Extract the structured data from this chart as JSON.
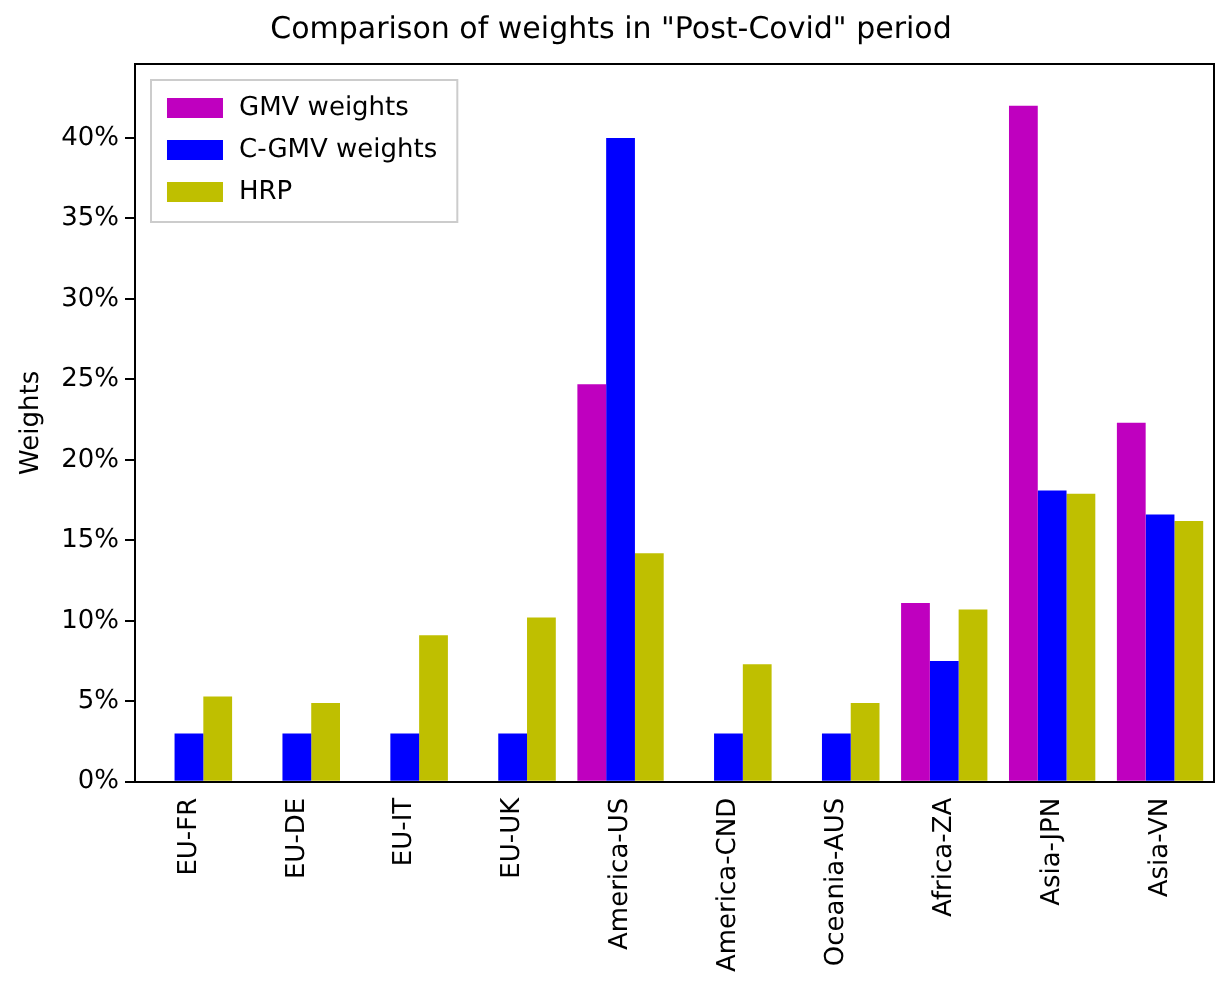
{
  "chart_data": {
    "type": "bar",
    "title": "Comparison of weights in \"Post-Covid\" period",
    "ylabel": "Weights",
    "categories": [
      "EU-FR",
      "EU-DE",
      "EU-IT",
      "EU-UK",
      "America-US",
      "America-CND",
      "Oceania-AUS",
      "Africa-ZA",
      "Asia-JPN",
      "Asia-VN"
    ],
    "series": [
      {
        "name": "GMV weights",
        "color": "#bf00bf",
        "values": [
          0,
          0,
          0,
          0,
          24.7,
          0,
          0,
          11.1,
          42,
          22.3
        ]
      },
      {
        "name": "C-GMV weights",
        "color": "#0000ff",
        "values": [
          3,
          3,
          3,
          3,
          40,
          3,
          3,
          7.5,
          18.1,
          16.6
        ]
      },
      {
        "name": "HRP",
        "color": "#bfbf00",
        "values": [
          5.3,
          4.9,
          9.1,
          10.2,
          14.2,
          7.3,
          4.9,
          10.7,
          17.9,
          16.2
        ]
      }
    ],
    "ylim": [
      0,
      44.6
    ],
    "yticks": [
      {
        "value": 0,
        "label": "0%"
      },
      {
        "value": 5,
        "label": "5%"
      },
      {
        "value": 10,
        "label": "10%"
      },
      {
        "value": 15,
        "label": "15%"
      },
      {
        "value": 20,
        "label": "20%"
      },
      {
        "value": 25,
        "label": "25%"
      },
      {
        "value": 30,
        "label": "30%"
      },
      {
        "value": 35,
        "label": "35%"
      },
      {
        "value": 40,
        "label": "40%"
      }
    ],
    "grid": false,
    "legend": "top left"
  }
}
